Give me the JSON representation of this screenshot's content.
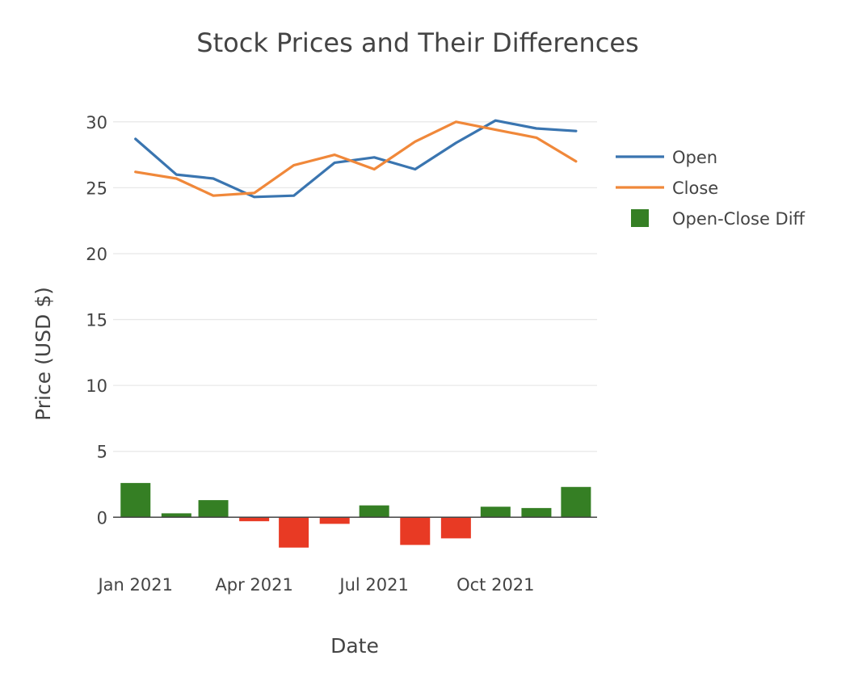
{
  "chart_data": {
    "type": "line",
    "title": "Stock Prices and Their Differences",
    "xlabel": "Date",
    "ylabel": "Price (USD $)",
    "x_ticks": [
      {
        "label": "Jan 2021",
        "date": "2021-01-01"
      },
      {
        "label": "Apr 2021",
        "date": "2021-04-01"
      },
      {
        "label": "Jul 2021",
        "date": "2021-07-01"
      },
      {
        "label": "Oct 2021",
        "date": "2021-10-01"
      }
    ],
    "y_ticks": [
      0,
      5,
      10,
      15,
      20,
      25,
      30
    ],
    "ylim": [
      -4.7,
      32.5
    ],
    "xlim": [
      "2020-12-15",
      "2021-12-17"
    ],
    "grid": true,
    "legend_position": "right",
    "x": [
      "2021-01-01",
      "2021-02-01",
      "2021-03-01",
      "2021-04-01",
      "2021-05-01",
      "2021-06-01",
      "2021-07-01",
      "2021-08-01",
      "2021-09-01",
      "2021-10-01",
      "2021-11-01",
      "2021-12-01"
    ],
    "series": [
      {
        "name": "Open",
        "type": "line",
        "color": "#3a75b0",
        "values": [
          28.7,
          26.0,
          25.7,
          24.3,
          24.4,
          26.9,
          27.3,
          26.4,
          28.4,
          30.1,
          29.5,
          29.3
        ]
      },
      {
        "name": "Close",
        "type": "line",
        "color": "#f0883a",
        "values": [
          26.2,
          25.7,
          24.4,
          24.6,
          26.7,
          27.5,
          26.4,
          28.5,
          30.0,
          29.4,
          28.8,
          27.0
        ]
      },
      {
        "name": "Open-Close Diff",
        "type": "bar",
        "color": "#357f24",
        "negative_color": "#e83a24",
        "values": [
          2.6,
          0.3,
          1.3,
          -0.3,
          -2.3,
          -0.5,
          0.9,
          -2.1,
          -1.6,
          0.8,
          0.7,
          2.3
        ]
      }
    ]
  }
}
